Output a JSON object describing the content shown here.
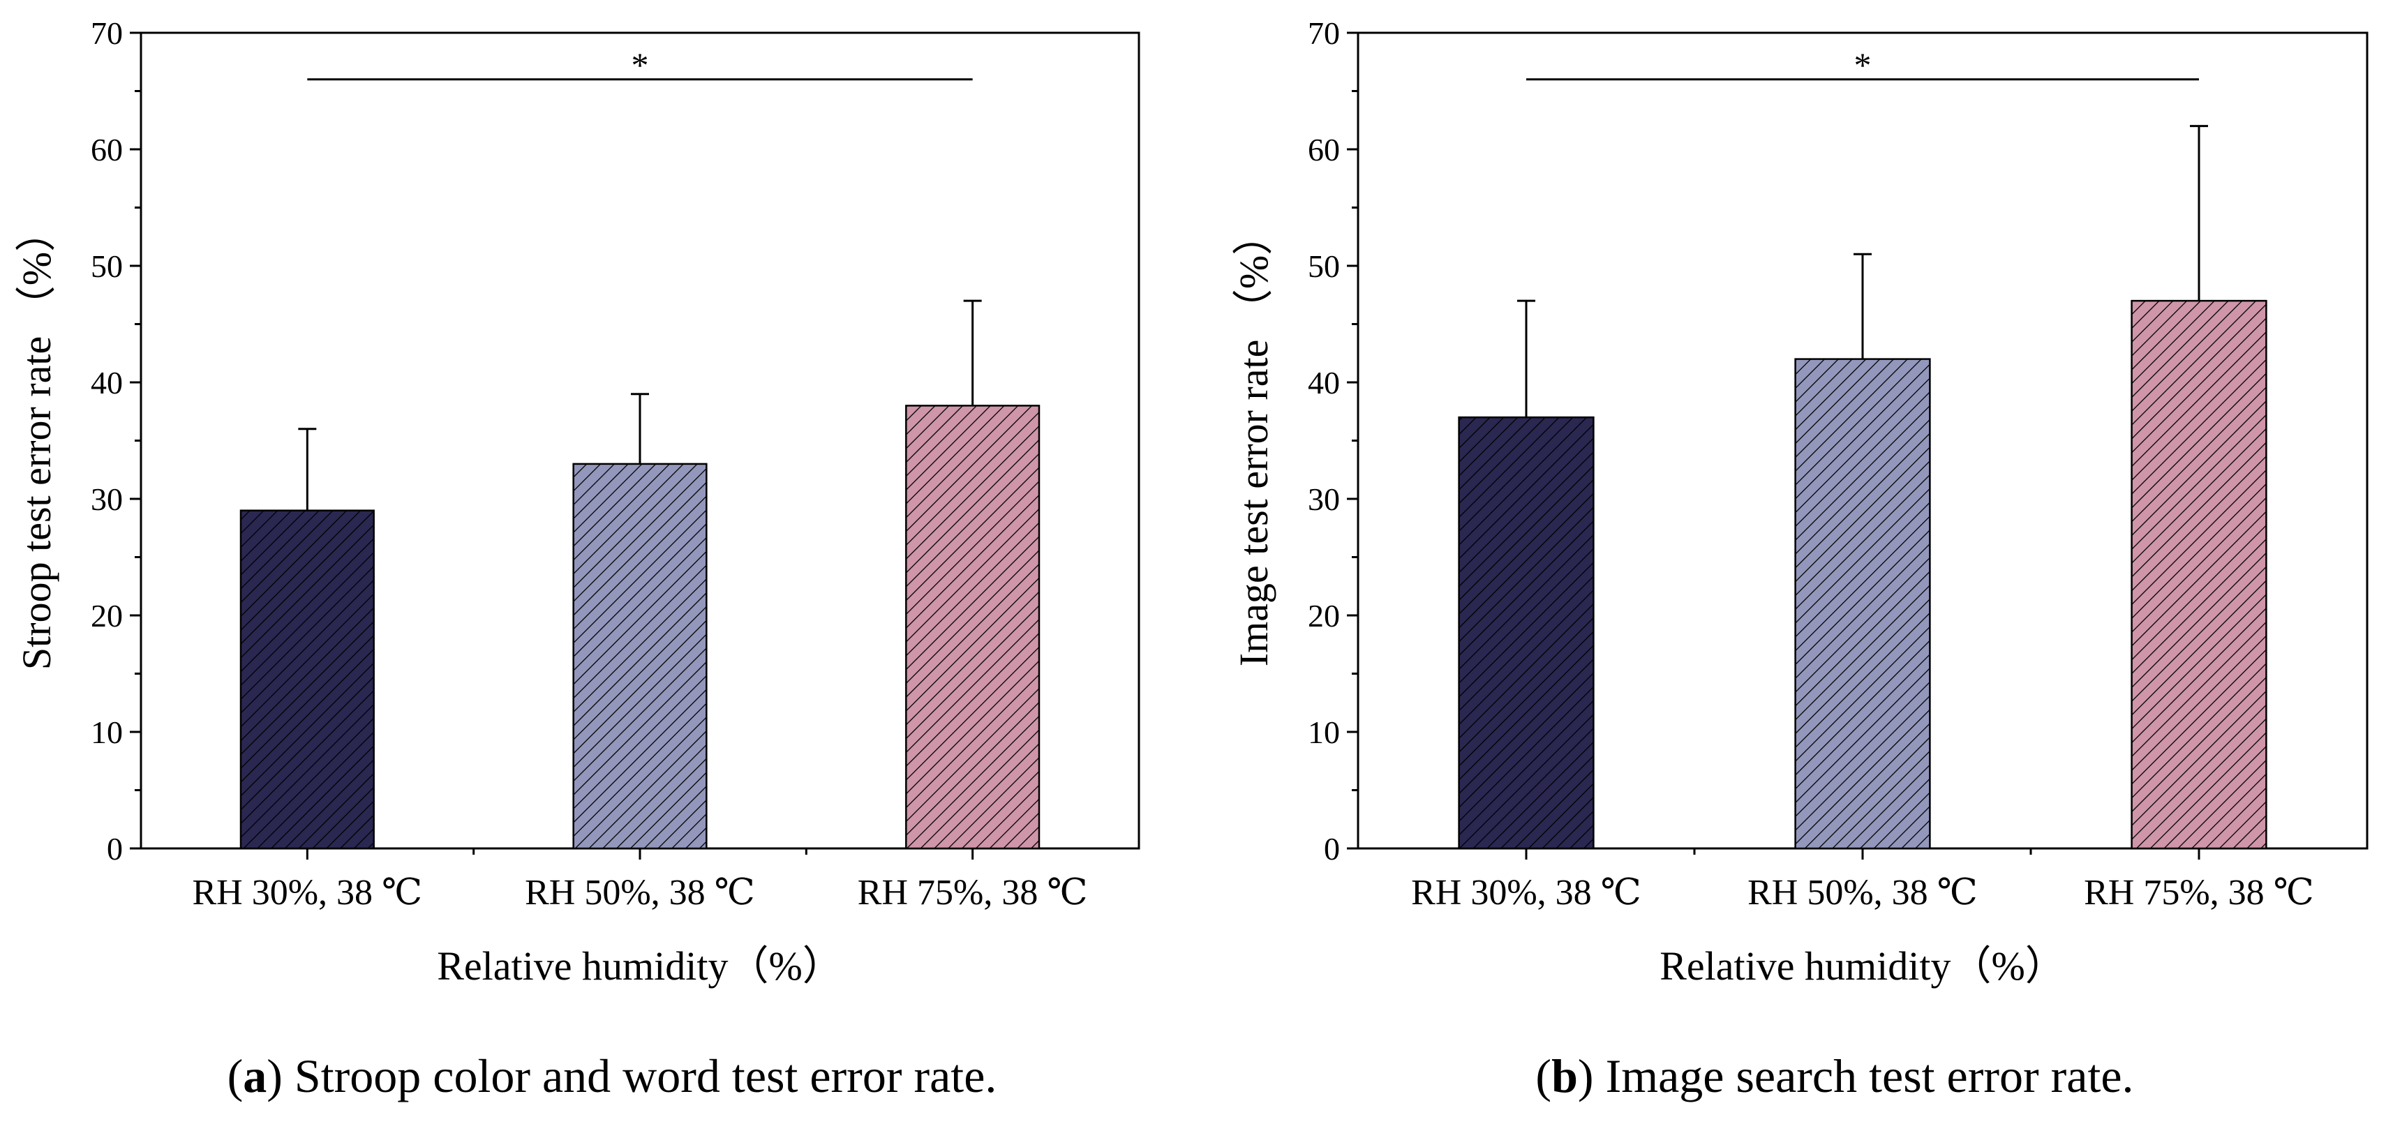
{
  "colors": {
    "bar1": "#2a2751",
    "bar2": "#9397bb",
    "bar3": "#cf95a8",
    "hatch": "#000000",
    "axis": "#000000"
  },
  "chart_data": [
    {
      "id": "a",
      "type": "bar",
      "categories": [
        "RH 30%, 38 ℃",
        "RH 50%, 38 ℃",
        "RH 75%, 38 ℃"
      ],
      "values": [
        29,
        33,
        38
      ],
      "error_upper": [
        36,
        39,
        47
      ],
      "xlabel": "Relative humidity（%）",
      "ylabel": "Stroop test error rate （%）",
      "ylim": [
        0,
        70
      ],
      "yticks": [
        "0",
        "10",
        "20",
        "30",
        "40",
        "50",
        "60",
        "70"
      ],
      "significance": {
        "from": 0,
        "to": 2,
        "y": 66,
        "label": "*"
      },
      "caption_letter": "a",
      "caption_text": " Stroop color and word test error rate.",
      "grid": false,
      "legend": "none"
    },
    {
      "id": "b",
      "type": "bar",
      "categories": [
        "RH 30%, 38 ℃",
        "RH 50%, 38 ℃",
        "RH 75%, 38 ℃"
      ],
      "values": [
        37,
        42,
        47
      ],
      "error_upper": [
        47,
        51,
        62
      ],
      "xlabel": "Relative humidity（%）",
      "ylabel": "Image test error rate （%）",
      "ylim": [
        0,
        70
      ],
      "yticks": [
        "0",
        "10",
        "20",
        "30",
        "40",
        "50",
        "60",
        "70"
      ],
      "significance": {
        "from": 0,
        "to": 2,
        "y": 66,
        "label": "*"
      },
      "caption_letter": "b",
      "caption_text": " Image search test error rate.",
      "grid": false,
      "legend": "none"
    }
  ]
}
